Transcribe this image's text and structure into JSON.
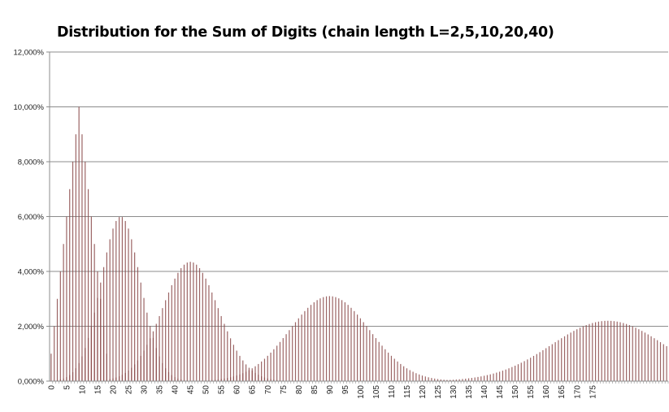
{
  "chart_data": {
    "type": "bar",
    "title": "Distribution for the Sum of Digits (chain length L=2,5,10,20,40)",
    "xlabel": "",
    "ylabel": "",
    "x_range": [
      0,
      199
    ],
    "x_tick_step": 5,
    "x_tick_labels": [
      "0",
      "5",
      "10",
      "15",
      "20",
      "25",
      "30",
      "35",
      "40",
      "45",
      "50",
      "55",
      "60",
      "65",
      "70",
      "75",
      "80",
      "85",
      "90",
      "95",
      "100",
      "105",
      "110",
      "115",
      "120",
      "125",
      "130",
      "135",
      "140",
      "145",
      "150",
      "155",
      "160",
      "165",
      "170",
      "175"
    ],
    "ylim": [
      0,
      0.12
    ],
    "y_tick_labels": [
      "0,000%",
      "2,000%",
      "4,000%",
      "6,000%",
      "8,000%",
      "10,000%",
      "12,000%"
    ],
    "grid": true,
    "legend": "none",
    "bar_color": "#8b4a4a",
    "series": [
      {
        "chain_length": 2,
        "x": [
          0,
          1,
          2,
          3,
          4,
          5,
          6,
          7,
          8,
          9,
          10,
          11,
          12,
          13,
          14,
          15,
          16,
          17,
          18
        ],
        "values": [
          0.01,
          0.02,
          0.03,
          0.04,
          0.05,
          0.06,
          0.07,
          0.08,
          0.09,
          0.1,
          0.09,
          0.08,
          0.07,
          0.06,
          0.05,
          0.04,
          0.03,
          0.02,
          0.01
        ]
      },
      {
        "chain_length": 5,
        "mean": 22.5,
        "sd": 6.42,
        "peak": 0.06,
        "x_range": [
          0,
          45
        ]
      },
      {
        "chain_length": 10,
        "mean": 45,
        "sd": 9.08,
        "peak": 0.0435,
        "x_range": [
          0,
          90
        ]
      },
      {
        "chain_length": 20,
        "mean": 90,
        "sd": 12.85,
        "peak": 0.031,
        "x_range": [
          0,
          180
        ]
      },
      {
        "chain_length": 40,
        "mean": 180,
        "sd": 18.17,
        "peak": 0.022,
        "x_range": [
          0,
          199
        ]
      }
    ]
  }
}
